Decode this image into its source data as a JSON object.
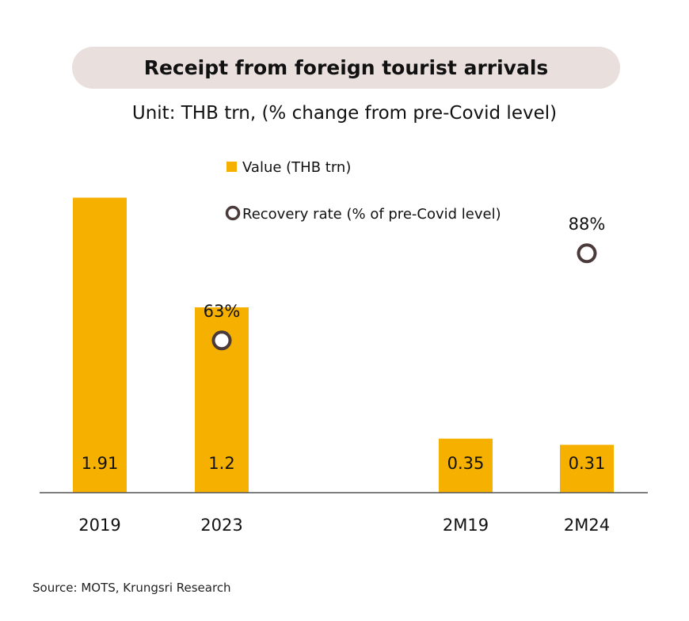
{
  "title": "Receipt from foreign tourist arrivals",
  "subtitle": "Unit: THB trn, (% change from pre-Covid level)",
  "source": "Source:  MOTS, Krungsri Research",
  "colors": {
    "bar": "#f5b000",
    "marker": "#4a3b3a",
    "axis": "#555555",
    "title_bg": "#e9dfdd"
  },
  "chart_data": {
    "type": "bar",
    "categories": [
      "2019",
      "2023",
      "2M19",
      "2M24"
    ],
    "series": [
      {
        "name": "Value (THB trn)",
        "values": [
          1.91,
          1.2,
          0.35,
          0.31
        ],
        "labels": [
          "1.91",
          "1.2",
          "0.35",
          "0.31"
        ]
      },
      {
        "name": "Recovery rate (% of pre-Covid level)",
        "values": [
          null,
          63,
          null,
          88
        ],
        "labels": [
          "",
          "63%",
          "",
          "88%"
        ]
      }
    ],
    "legend_placement": "top-center",
    "grid": false
  }
}
